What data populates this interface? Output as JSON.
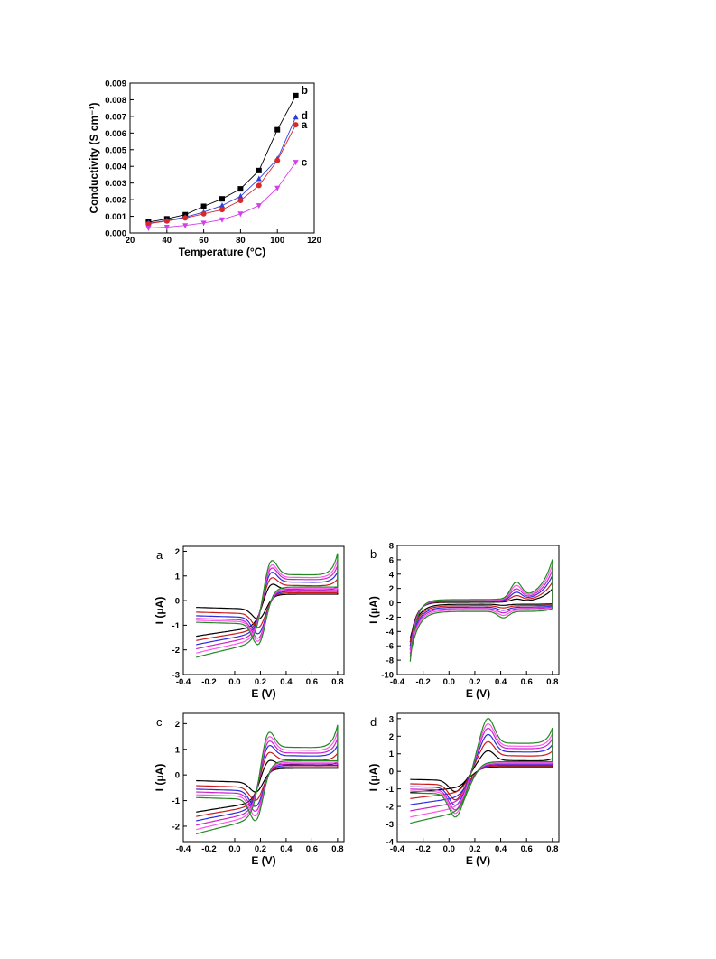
{
  "chart_data": [
    {
      "type": "line",
      "id": "conductivity",
      "xlabel": "Temperature (°C)",
      "ylabel": "Conductivity (S cm⁻¹)",
      "xlim": [
        20,
        120
      ],
      "ylim": [
        0,
        0.009
      ],
      "xticks": [
        "20",
        "40",
        "60",
        "80",
        "100",
        "120"
      ],
      "yticks": [
        "0.000",
        "0.001",
        "0.002",
        "0.003",
        "0.004",
        "0.005",
        "0.006",
        "0.007",
        "0.008",
        "0.009"
      ],
      "x": [
        30,
        40,
        50,
        60,
        70,
        80,
        90,
        100,
        110
      ],
      "series": [
        {
          "name": "b",
          "color": "#000000",
          "marker": "square",
          "values": [
            0.00065,
            0.00085,
            0.0011,
            0.0016,
            0.00205,
            0.00265,
            0.00375,
            0.0062,
            0.00825
          ]
        },
        {
          "name": "d",
          "color": "#2d3fd8",
          "marker": "triangle-up",
          "values": [
            0.00058,
            0.00075,
            0.00095,
            0.00125,
            0.00165,
            0.0022,
            0.00325,
            0.00445,
            0.00695
          ]
        },
        {
          "name": "a",
          "color": "#d82828",
          "marker": "circle",
          "values": [
            0.00055,
            0.00072,
            0.0009,
            0.00115,
            0.0014,
            0.00195,
            0.00285,
            0.00435,
            0.0065
          ]
        },
        {
          "name": "c",
          "color": "#d33fe8",
          "marker": "triangle-down",
          "values": [
            0.0003,
            0.00035,
            0.00045,
            0.0006,
            0.0008,
            0.00115,
            0.00165,
            0.0027,
            0.00425
          ]
        }
      ],
      "grid": false
    },
    {
      "type": "line",
      "id": "cv-a",
      "panel": "a",
      "xlabel": "E (V)",
      "ylabel": "I (μA)",
      "xlim": [
        -0.4,
        0.85
      ],
      "ylim": [
        -3,
        2.2
      ],
      "xticks": [
        "-0.4",
        "-0.2",
        "0.0",
        "0.2",
        "0.4",
        "0.6",
        "0.8"
      ],
      "yticks": [
        "-3",
        "-2",
        "-1",
        "0",
        "1",
        "2"
      ],
      "colors": [
        "#000000",
        "#cc1a1a",
        "#2a2ae0",
        "#cc22cc",
        "#ff55ee",
        "#228822"
      ],
      "peak_potential": {
        "anodic": 0.27,
        "cathodic": 0.19
      },
      "anodic_peaks": [
        0.85,
        1.15,
        1.4,
        1.6,
        1.75,
        1.95
      ],
      "cathodic_peaks": [
        -1.0,
        -1.35,
        -1.62,
        -1.82,
        -1.95,
        -2.1
      ],
      "grid": false
    },
    {
      "type": "line",
      "id": "cv-b",
      "panel": "b",
      "xlabel": "E (V)",
      "ylabel": "I (μA)",
      "xlim": [
        -0.4,
        0.85
      ],
      "ylim": [
        -10,
        8
      ],
      "xticks": [
        "-0.4",
        "-0.2",
        "0.0",
        "0.2",
        "0.4",
        "0.6",
        "0.8"
      ],
      "yticks": [
        "-10",
        "-8",
        "-6",
        "-4",
        "-2",
        "0",
        "2",
        "4",
        "6",
        "8"
      ],
      "colors": [
        "#000000",
        "#cc1a1a",
        "#2a2ae0",
        "#cc22cc",
        "#ff55ee",
        "#228822"
      ],
      "peak_potential": {
        "anodic": 0.52,
        "cathodic": 0.42
      },
      "anodic_ends": [
        2.0,
        3.0,
        4.0,
        4.8,
        5.6,
        6.4
      ],
      "cathodic_starts": [
        -5.5,
        -6.0,
        -6.6,
        -7.1,
        -7.6,
        -8.2
      ],
      "grid": false
    },
    {
      "type": "line",
      "id": "cv-c",
      "panel": "c",
      "xlabel": "E (V)",
      "ylabel": "I (μA)",
      "xlim": [
        -0.4,
        0.85
      ],
      "ylim": [
        -2.6,
        2.4
      ],
      "xticks": [
        "-0.4",
        "-0.2",
        "0.0",
        "0.2",
        "0.4",
        "0.6",
        "0.8"
      ],
      "yticks": [
        "-2",
        "-1",
        "0",
        "1",
        "2"
      ],
      "colors": [
        "#000000",
        "#cc1a1a",
        "#2a2ae0",
        "#cc22cc",
        "#ff55ee",
        "#228822"
      ],
      "peak_potential": {
        "anodic": 0.25,
        "cathodic": 0.17
      },
      "anodic_peaks": [
        0.75,
        1.1,
        1.4,
        1.6,
        1.8,
        2.0
      ],
      "cathodic_peaks": [
        -0.9,
        -1.25,
        -1.5,
        -1.7,
        -1.9,
        -2.1
      ],
      "grid": false
    },
    {
      "type": "line",
      "id": "cv-d",
      "panel": "d",
      "xlabel": "E (V)",
      "ylabel": "I (μA)",
      "xlim": [
        -0.4,
        0.85
      ],
      "ylim": [
        -4,
        3.3
      ],
      "xticks": [
        "-0.4",
        "-0.2",
        "0.0",
        "0.2",
        "0.4",
        "0.6",
        "0.8"
      ],
      "yticks": [
        "-4",
        "-3",
        "-2",
        "-1",
        "0",
        "1",
        "2",
        "3"
      ],
      "colors": [
        "#000000",
        "#cc1a1a",
        "#2a2ae0",
        "#cc22cc",
        "#ff55ee",
        "#228822"
      ],
      "peak_potential": {
        "anodic": 0.3,
        "cathodic": 0.05
      },
      "anodic_peaks": [
        1.15,
        1.65,
        2.05,
        2.4,
        2.65,
        2.95
      ],
      "cathodic_peaks": [
        -1.3,
        -1.75,
        -2.05,
        -2.3,
        -2.5,
        -2.7
      ],
      "grid": false
    }
  ]
}
